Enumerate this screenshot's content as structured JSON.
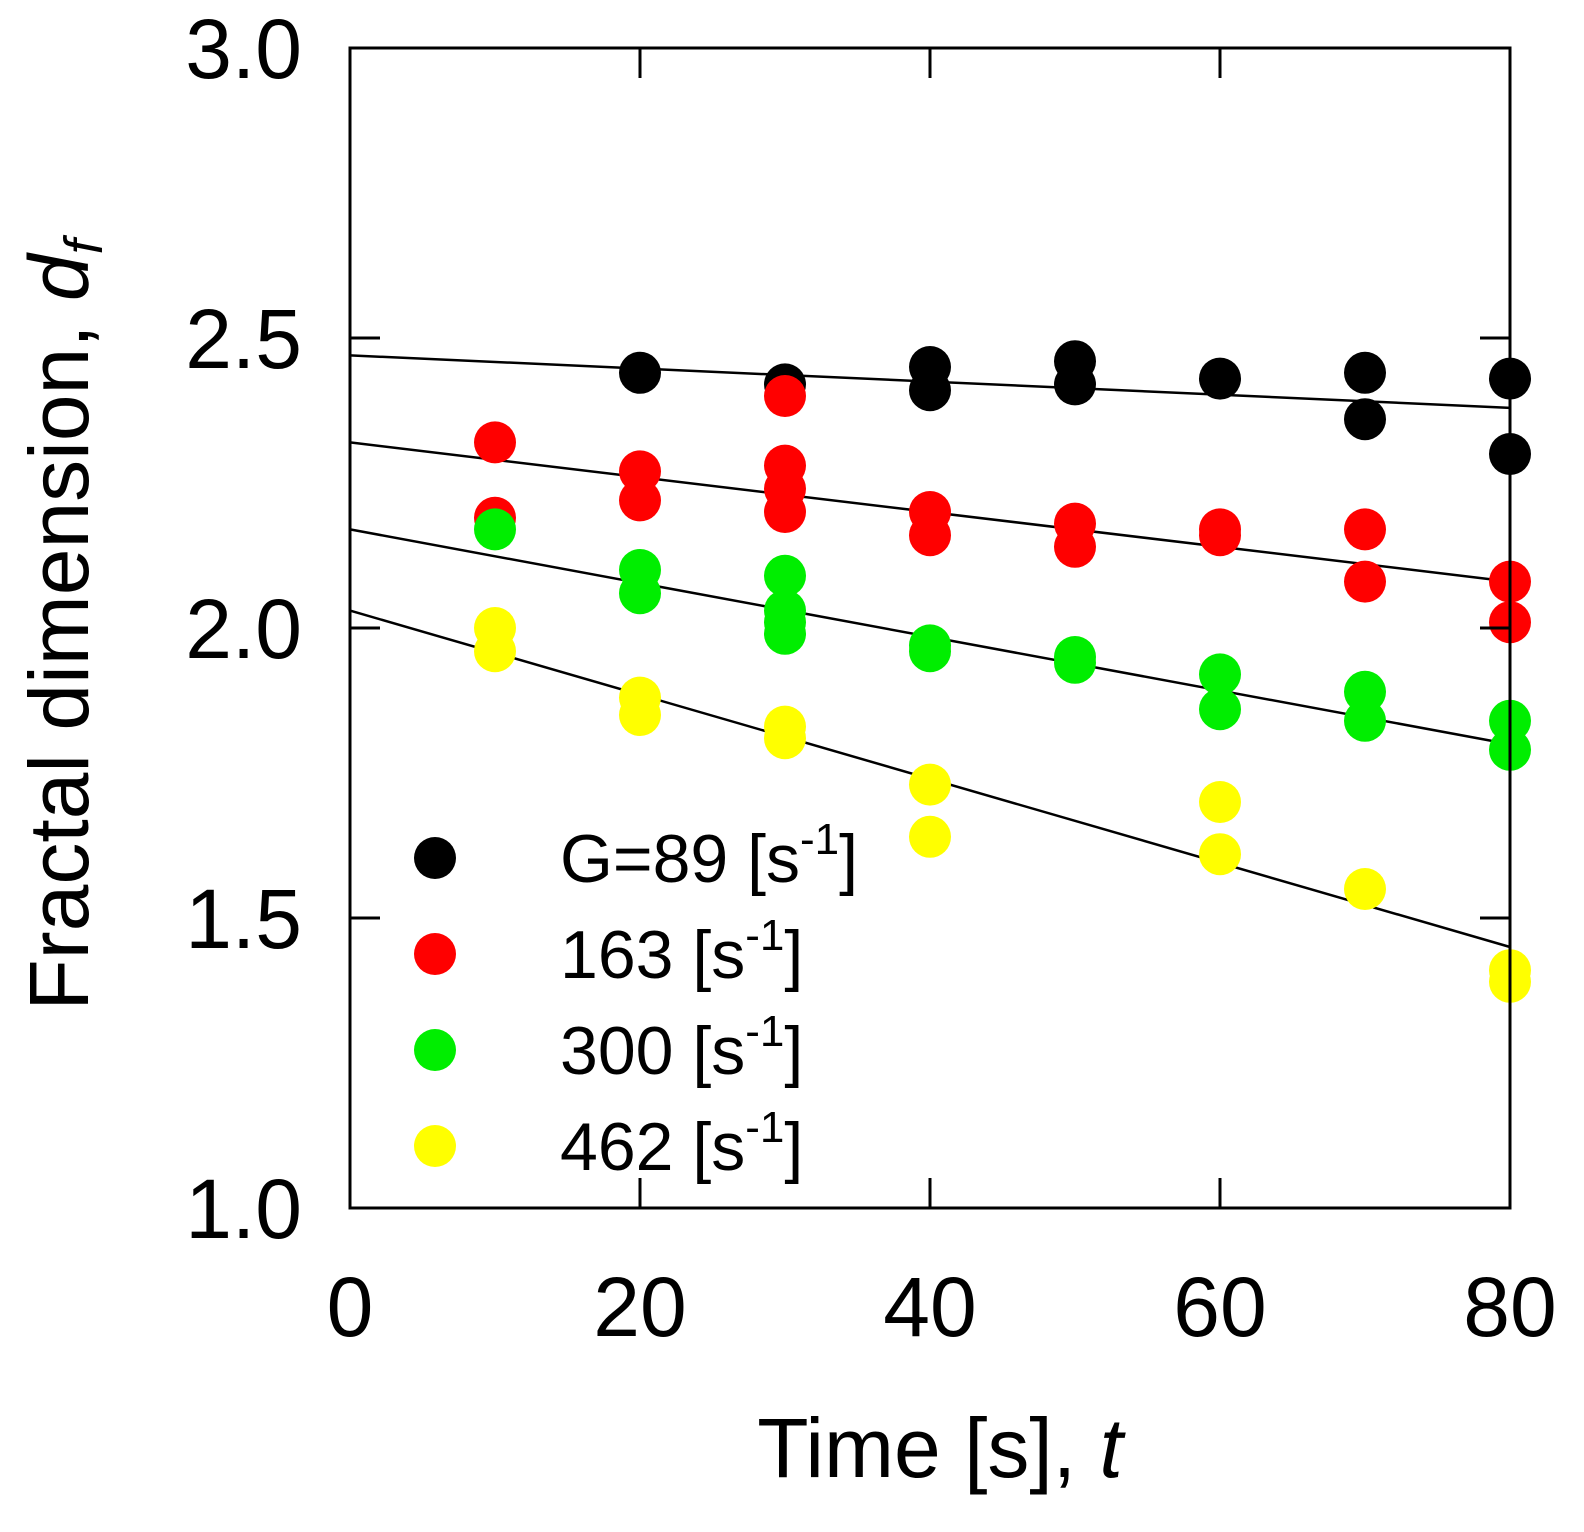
{
  "chart_data": {
    "type": "scatter",
    "title": "",
    "xlabel": "Time [s], ",
    "xlabel_var": "t",
    "ylabel": "Fractal dimension, ",
    "ylabel_var": "d",
    "ylabel_var_sub": "f",
    "xlim": [
      0,
      80
    ],
    "ylim": [
      1.0,
      3.0
    ],
    "xticks": [
      0,
      20,
      40,
      60,
      80
    ],
    "xtick_labels": [
      "0",
      "20",
      "40",
      "60",
      "80"
    ],
    "yticks": [
      1.0,
      1.5,
      2.0,
      2.5,
      3.0
    ],
    "ytick_labels": [
      "1.0",
      "1.5",
      "2.0",
      "2.5",
      "3.0"
    ],
    "grid": false,
    "legend_position": "bottom-left",
    "series": [
      {
        "name": "G=89 [s-1]",
        "legend_main": "G=89 [s",
        "legend_sup": "-1",
        "legend_end": "]",
        "color": "#000000",
        "points": [
          [
            20,
            2.44
          ],
          [
            30,
            2.42
          ],
          [
            40,
            2.45
          ],
          [
            40,
            2.41
          ],
          [
            50,
            2.46
          ],
          [
            50,
            2.42
          ],
          [
            60,
            2.43
          ],
          [
            70,
            2.44
          ],
          [
            70,
            2.36
          ],
          [
            80,
            2.43
          ],
          [
            80,
            2.3
          ]
        ],
        "fit": {
          "intercept": 2.47,
          "slope": -0.00113
        }
      },
      {
        "name": "163 [s-1]",
        "legend_main": "163 [s",
        "legend_sup": "-1",
        "legend_end": "]",
        "color": "#ff0000",
        "points": [
          [
            10,
            2.32
          ],
          [
            10,
            2.19
          ],
          [
            20,
            2.27
          ],
          [
            20,
            2.22
          ],
          [
            30,
            2.4
          ],
          [
            30,
            2.28
          ],
          [
            30,
            2.24
          ],
          [
            30,
            2.2
          ],
          [
            40,
            2.2
          ],
          [
            40,
            2.16
          ],
          [
            50,
            2.18
          ],
          [
            50,
            2.14
          ],
          [
            60,
            2.17
          ],
          [
            60,
            2.16
          ],
          [
            70,
            2.17
          ],
          [
            70,
            2.08
          ],
          [
            80,
            2.08
          ],
          [
            80,
            2.01
          ]
        ],
        "fit": {
          "intercept": 2.32,
          "slope": -0.003
        }
      },
      {
        "name": "300 [s-1]",
        "legend_main": "300 [s",
        "legend_sup": "-1",
        "legend_end": "]",
        "color": "#00ee00",
        "points": [
          [
            10,
            2.17
          ],
          [
            20,
            2.1
          ],
          [
            20,
            2.06
          ],
          [
            30,
            2.09
          ],
          [
            30,
            2.03
          ],
          [
            30,
            2.01
          ],
          [
            30,
            1.99
          ],
          [
            40,
            1.97
          ],
          [
            40,
            1.96
          ],
          [
            50,
            1.95
          ],
          [
            50,
            1.94
          ],
          [
            60,
            1.92
          ],
          [
            60,
            1.86
          ],
          [
            70,
            1.89
          ],
          [
            70,
            1.84
          ],
          [
            80,
            1.84
          ],
          [
            80,
            1.79
          ]
        ],
        "fit": {
          "intercept": 2.17,
          "slope": -0.00463
        }
      },
      {
        "name": "462 [s-1]",
        "legend_main": "462 [s",
        "legend_sup": "-1",
        "legend_end": "]",
        "color": "#ffff00",
        "points": [
          [
            10,
            2.0
          ],
          [
            10,
            1.96
          ],
          [
            20,
            1.88
          ],
          [
            20,
            1.85
          ],
          [
            30,
            1.83
          ],
          [
            30,
            1.81
          ],
          [
            40,
            1.73
          ],
          [
            40,
            1.64
          ],
          [
            60,
            1.7
          ],
          [
            60,
            1.61
          ],
          [
            70,
            1.55
          ],
          [
            80,
            1.41
          ],
          [
            80,
            1.39
          ]
        ],
        "fit": {
          "intercept": 2.03,
          "slope": -0.00725
        }
      }
    ]
  }
}
